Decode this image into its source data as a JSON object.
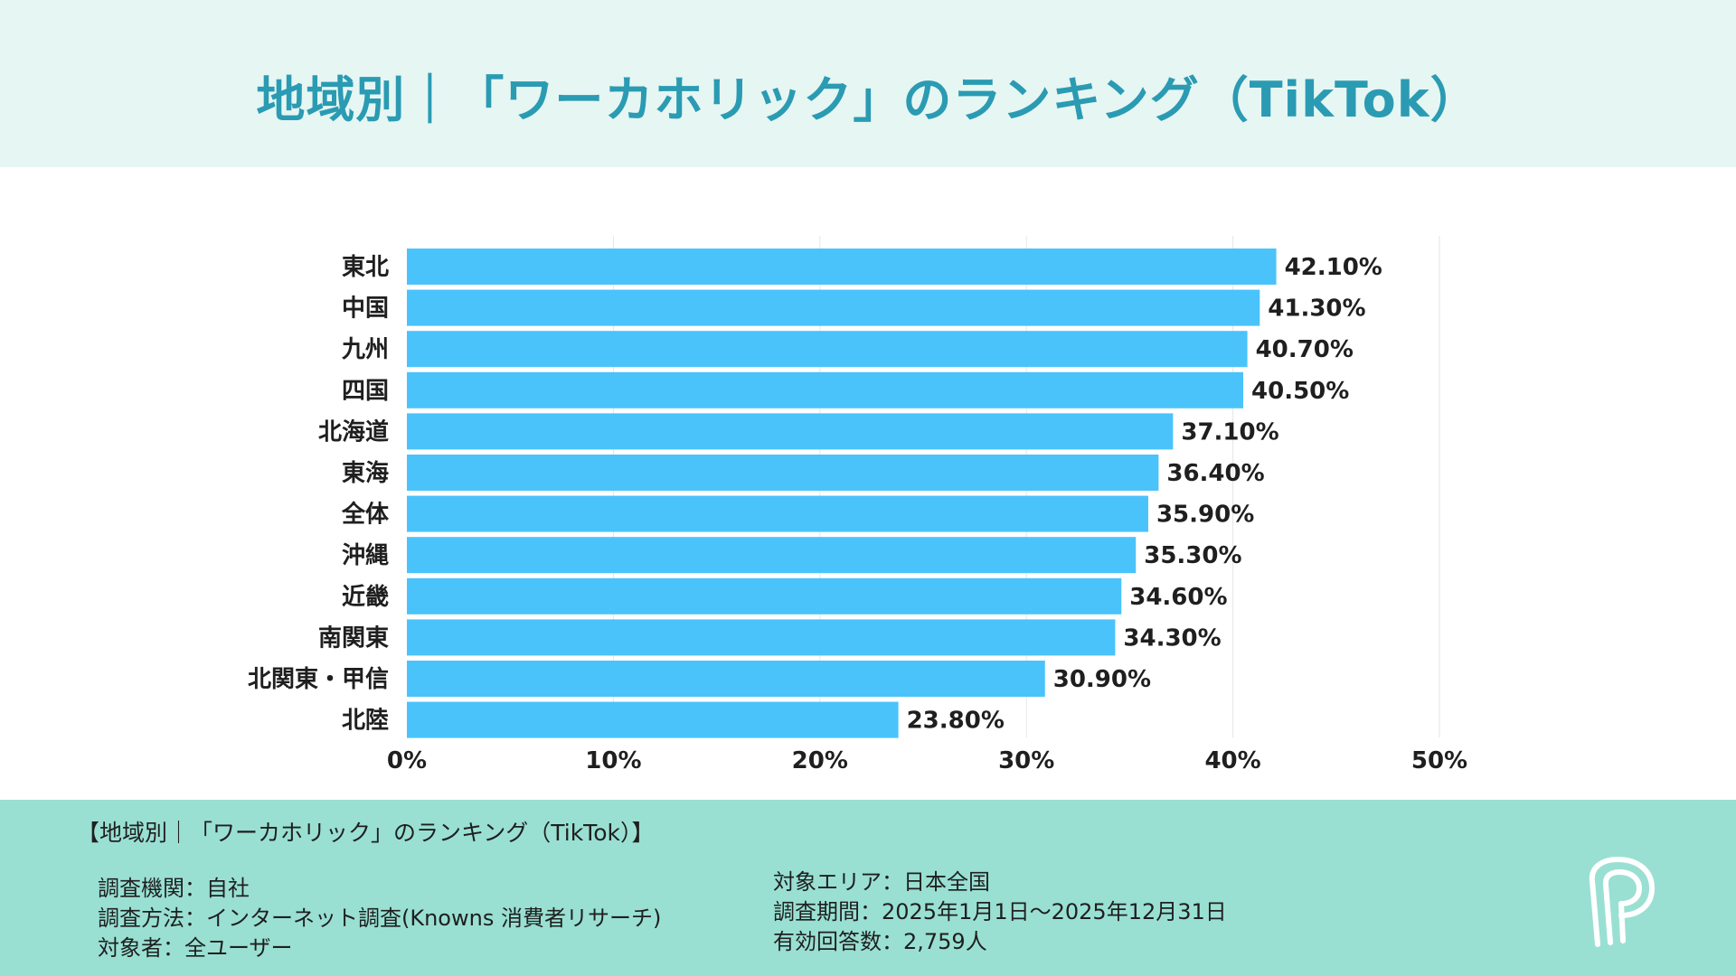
{
  "header": {
    "title": "地域別｜「ワーカホリック」のランキング（TikTok）"
  },
  "chart_data": {
    "type": "bar",
    "orientation": "horizontal",
    "categories": [
      "東北",
      "中国",
      "九州",
      "四国",
      "北海道",
      "東海",
      "全体",
      "沖縄",
      "近畿",
      "南関東",
      "北関東・甲信",
      "北陸"
    ],
    "values": [
      42.1,
      41.3,
      40.7,
      40.5,
      37.1,
      36.4,
      35.9,
      35.3,
      34.6,
      34.3,
      30.9,
      23.8
    ],
    "value_labels": [
      "42.10%",
      "41.30%",
      "40.70%",
      "40.50%",
      "37.10%",
      "36.40%",
      "35.90%",
      "35.30%",
      "34.60%",
      "34.30%",
      "30.90%",
      "23.80%"
    ],
    "x_ticks": [
      "0%",
      "10%",
      "20%",
      "30%",
      "40%",
      "50%"
    ],
    "xlim": [
      0,
      50
    ],
    "grid": true,
    "bar_color": "#4ac3fb"
  },
  "footer": {
    "title": "【地域別｜「ワーカホリック」のランキング（TikTok）】",
    "left": [
      "調査機関：自社",
      "調査方法：インターネット調査(Knowns 消費者リサーチ)",
      "対象者：全ユーザー"
    ],
    "right": [
      "対象エリア：日本全国",
      "調査期間：2025年1月1日〜2025年12月31日",
      "有効回答数：2,759人"
    ]
  },
  "colors": {
    "header_bg": "#e6f6f3",
    "title": "#2a9bb3",
    "footer_bg": "#99e0d3",
    "text": "#1f1f1f"
  },
  "logo_icon": "p-logo-icon"
}
